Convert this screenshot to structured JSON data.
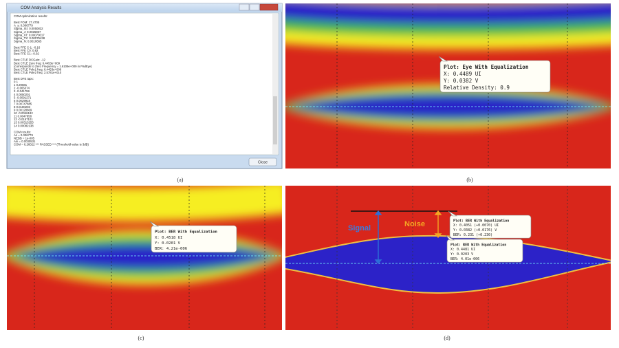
{
  "window": {
    "title": "COM Analysis Results",
    "blocks": [
      [
        "COM optimization results:"
      ],
      [
        "Best FOM: 17.4705",
        "A_s: 0.006779",
        "Sigma_ISI: 0.0050832",
        "Sigma_J: 0.0026867",
        "Sigma_XT: 0.00070017",
        "Sigma_TX: 0.00075438",
        "Sigma_N: 0.0010665"
      ],
      [
        "Best FFE C-1: -0.16",
        "Best FFE C0: 0.82",
        "Best FFE C1: -0.02"
      ],
      [
        "Best CTLE DCGain: -12",
        "Best CTLE Zero freq: 6.4453e+009",
        "(corresponds to Zero Frequency = 1.6109e+009 in PadEye)",
        "Best CTLE Pole1 freq: 6.4453e+009",
        "Best CTLE Pole2 freq: 2.5781e+010"
      ],
      [
        "Best DFE taps:",
        "0    1",
        "1    0.29681",
        "2    -0.065374",
        "3    -0.041759",
        "4    0.0050201",
        "5    -0.0091271",
        "6    0.0029918",
        "7    0.00747885",
        "8    0.0180203",
        "9    0.00128869",
        "10   -0.0046182",
        "11   0.0047858",
        "12   -0.0157101",
        "13   0.00313253",
        "14   0.00082138"
      ],
      [
        "COM results:",
        "As = 0.006779",
        "NEBB = 1e-005",
        "Ani = 0.0030531",
        "COM = 6.26022   *** PASSED ***  (Threshold value is 3dB)"
      ]
    ],
    "button": "Close"
  },
  "captions": [
    "(a)",
    "(b)",
    "(c)",
    "(d)"
  ],
  "tooltips": [
    [
      "Plot: Eye With Equalization",
      "X: 0.4489 UI",
      "Y: 0.0382 V",
      "Relative Density: 0.9"
    ],
    [
      "Plot: BER With Equalization",
      "X: 0.4518 UI",
      "Y: 0.0201 V",
      "BER: 4.21e-006"
    ],
    [
      "Plot: BER With Equalization",
      "X: 0.4051 (+0.0070) UI",
      "Y: 0.0382 (+0.0176) V",
      "BER: 0.231 (+0.230)"
    ],
    [
      "Plot: BER With Equalization",
      "X: 0.4481 UI",
      "Y: 0.0203 V",
      "BER: 4.01e-006"
    ]
  ],
  "annotations": {
    "signal": "Signal",
    "noise": "Noise"
  }
}
